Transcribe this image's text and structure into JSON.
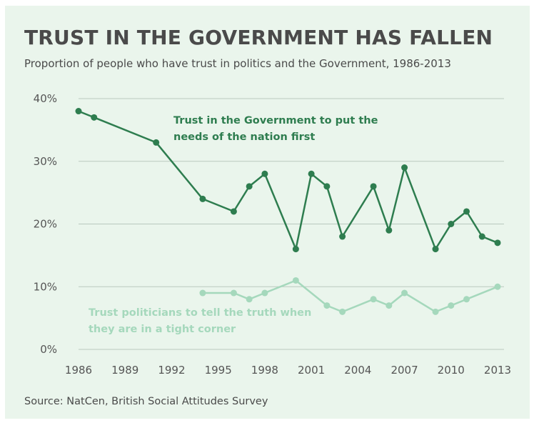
{
  "title": "TRUST IN THE GOVERNMENT HAS FALLEN",
  "subtitle": "Proportion of people who have trust in politics and the Government, 1986-2013",
  "source": "Source: NatCen, British Social Attitudes Survey",
  "colors": {
    "background": "#eaf5ec",
    "series_dark": "#2e7d4f",
    "series_light": "#a5d8bc",
    "grid": "#b9c9be"
  },
  "chart_data": {
    "type": "line",
    "xlim": [
      1986,
      2013
    ],
    "ylim": [
      0,
      40
    ],
    "x_ticks": [
      "1986",
      "1989",
      "1992",
      "1995",
      "1998",
      "2001",
      "2004",
      "2007",
      "2010",
      "2013"
    ],
    "y_ticks": [
      "0%",
      "10%",
      "20%",
      "30%",
      "40%"
    ],
    "y_tick_values": [
      0,
      10,
      20,
      30,
      40
    ],
    "grid": "horizontal",
    "legend": "none",
    "series": [
      {
        "name": "Trust in the Government to put the needs of the nation first",
        "label_lines": [
          "Trust in the Government to put the",
          "needs of the nation first"
        ],
        "color": "#2e7d4f",
        "points": [
          [
            1986,
            38
          ],
          [
            1987,
            37
          ],
          [
            1991,
            33
          ],
          [
            1994,
            24
          ],
          [
            1996,
            22
          ],
          [
            1997,
            26
          ],
          [
            1998,
            28
          ],
          [
            2000,
            16
          ],
          [
            2001,
            28
          ],
          [
            2002,
            26
          ],
          [
            2003,
            18
          ],
          [
            2005,
            26
          ],
          [
            2006,
            19
          ],
          [
            2007,
            29
          ],
          [
            2009,
            16
          ],
          [
            2010,
            20
          ],
          [
            2011,
            22
          ],
          [
            2012,
            18
          ],
          [
            2013,
            17
          ]
        ]
      },
      {
        "name": "Trust politicians to tell the truth when they are in a tight corner",
        "label_lines": [
          "Trust politicians to tell the truth when",
          "they are in a tight corner"
        ],
        "color": "#a5d8bc",
        "points": [
          [
            1994,
            9
          ],
          [
            1996,
            9
          ],
          [
            1997,
            8
          ],
          [
            1998,
            9
          ],
          [
            2000,
            11
          ],
          [
            2002,
            7
          ],
          [
            2003,
            6
          ],
          [
            2005,
            8
          ],
          [
            2006,
            7
          ],
          [
            2007,
            9
          ],
          [
            2009,
            6
          ],
          [
            2010,
            7
          ],
          [
            2011,
            8
          ],
          [
            2013,
            10
          ]
        ]
      }
    ]
  }
}
